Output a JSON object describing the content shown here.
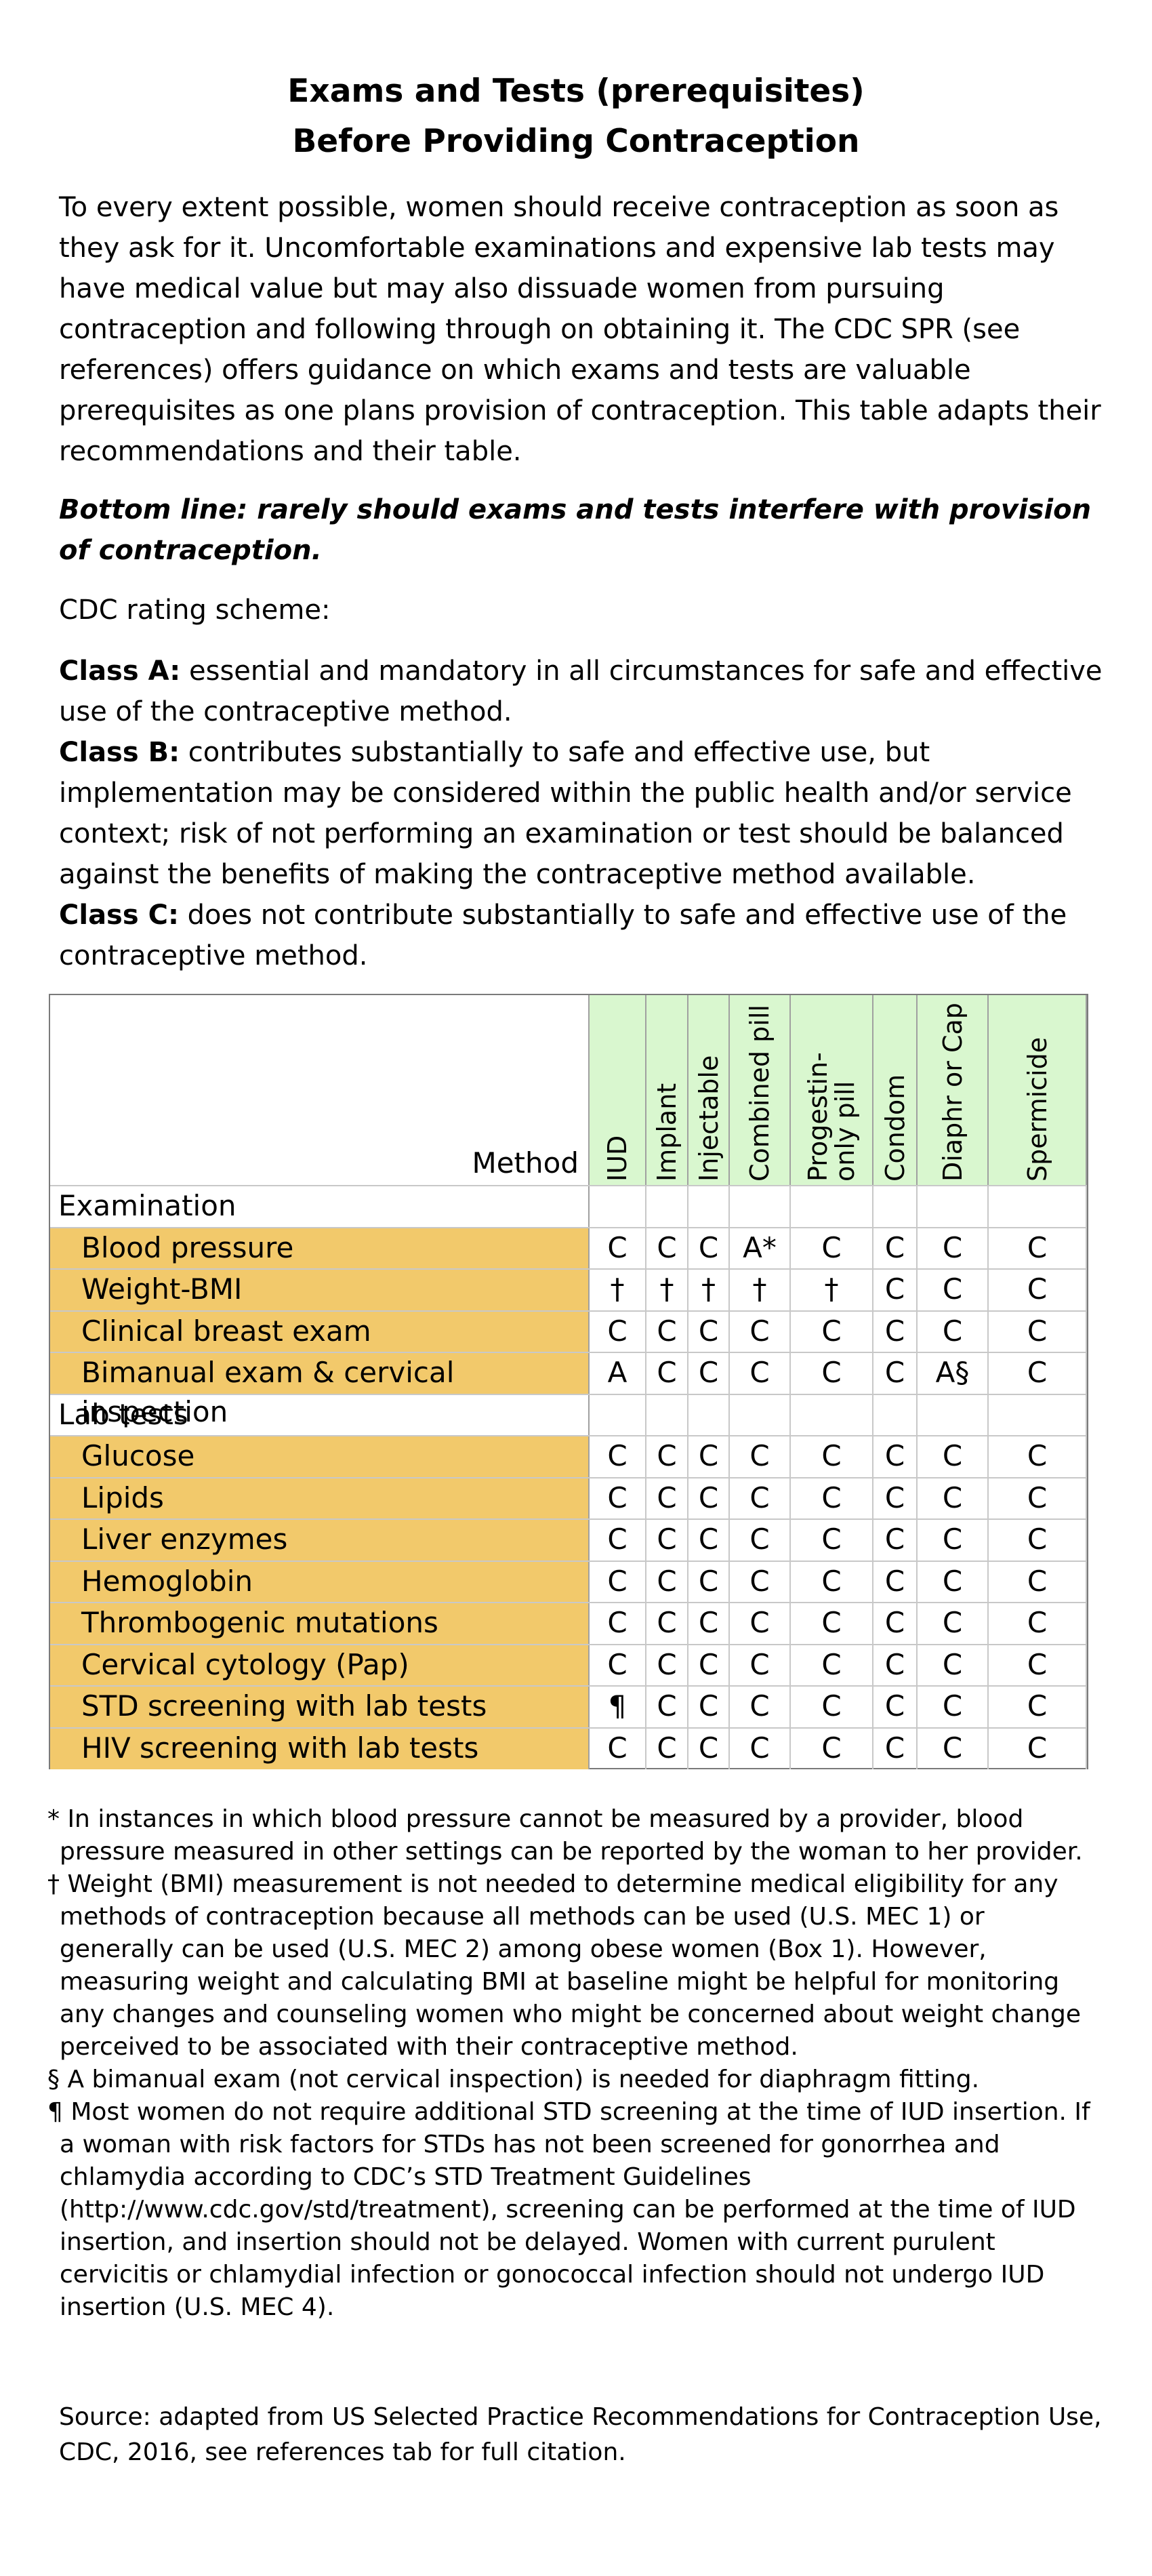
{
  "title": {
    "line1": "Exams and Tests (prerequisites)",
    "line2": "Before Providing Contraception"
  },
  "intro": "To every extent possible, women should receive contraception as soon as they ask for it.  Uncomfortable examinations and expensive lab tests may have medical value but may also dissuade women from pursuing contraception and following through on obtaining it.  The CDC SPR (see references) offers guidance on which exams and tests are valuable prerequisites as one plans provision of contraception.  This table adapts their recommendations and their table.",
  "bottom_line": "Bottom line:  rarely should exams and tests interfere with provision of contraception.",
  "rating_heading": "CDC rating scheme:",
  "classes": [
    {
      "label": "Class A:",
      "text": " essential and mandatory in all circumstances for safe and effective use of the contraceptive method."
    },
    {
      "label": "Class B:",
      "text": " contributes substantially to safe and effective use, but implementation may be considered within the public health and/or service context; risk of not performing an examination or test should be balanced against the benefits of making the contraceptive method available."
    },
    {
      "label": "Class C:",
      "text": " does not contribute substantially to safe and effective use of the contraceptive method."
    }
  ],
  "table": {
    "method_label": "Method",
    "columns": [
      "IUD",
      "Implant",
      "Injectable",
      "Combined pill",
      "Progestin-only pill",
      "Condom",
      "Diaphr or Cap",
      "Spermicide"
    ],
    "rows": [
      {
        "type": "section",
        "label": "Examination"
      },
      {
        "type": "item",
        "label": "Blood pressure",
        "values": [
          "C",
          "C",
          "C",
          "A*",
          "C",
          "C",
          "C",
          "C"
        ]
      },
      {
        "type": "item",
        "label": "Weight-BMI",
        "values": [
          "†",
          "†",
          "†",
          "†",
          "†",
          "C",
          "C",
          "C"
        ]
      },
      {
        "type": "item",
        "label": "Clinical breast exam",
        "values": [
          "C",
          "C",
          "C",
          "C",
          "C",
          "C",
          "C",
          "C"
        ]
      },
      {
        "type": "item",
        "label": "Bimanual exam & cervical inspection",
        "values": [
          "A",
          "C",
          "C",
          "C",
          "C",
          "C",
          "A§",
          "C"
        ]
      },
      {
        "type": "section",
        "label": "Lab tests"
      },
      {
        "type": "item",
        "label": "Glucose",
        "values": [
          "C",
          "C",
          "C",
          "C",
          "C",
          "C",
          "C",
          "C"
        ]
      },
      {
        "type": "item",
        "label": "Lipids",
        "values": [
          "C",
          "C",
          "C",
          "C",
          "C",
          "C",
          "C",
          "C"
        ]
      },
      {
        "type": "item",
        "label": "Liver enzymes",
        "values": [
          "C",
          "C",
          "C",
          "C",
          "C",
          "C",
          "C",
          "C"
        ]
      },
      {
        "type": "item",
        "label": "Hemoglobin",
        "values": [
          "C",
          "C",
          "C",
          "C",
          "C",
          "C",
          "C",
          "C"
        ]
      },
      {
        "type": "item",
        "label": "Thrombogenic mutations",
        "values": [
          "C",
          "C",
          "C",
          "C",
          "C",
          "C",
          "C",
          "C"
        ]
      },
      {
        "type": "item",
        "label": "Cervical cytology (Pap)",
        "values": [
          "C",
          "C",
          "C",
          "C",
          "C",
          "C",
          "C",
          "C"
        ]
      },
      {
        "type": "item",
        "label": "STD screening with lab tests",
        "values": [
          "¶",
          "C",
          "C",
          "C",
          "C",
          "C",
          "C",
          "C"
        ]
      },
      {
        "type": "item",
        "label": "HIV screening with lab tests",
        "values": [
          "C",
          "C",
          "C",
          "C",
          "C",
          "C",
          "C",
          "C"
        ]
      }
    ]
  },
  "footnotes": [
    "* In instances in which blood pressure cannot be measured by a provider, blood pressure measured in other settings can be reported by the woman to her provider.",
    "† Weight (BMI) measurement is not needed to determine medical eligibility for any methods of contraception because all methods can be used (U.S. MEC 1) or generally can be used (U.S. MEC 2) among obese women (Box 1). However, measuring weight and calculating BMI at baseline might be helpful for monitoring any changes and counseling women who might be concerned about weight change perceived to be associated with their contraceptive method.",
    "§ A bimanual exam (not cervical inspection) is needed for diaphragm fitting.",
    "¶ Most women do not require additional STD screening at the time of IUD insertion. If a woman with risk factors for STDs has not been screened for gonorrhea and chlamydia according to CDC’s STD Treatment Guidelines (http://www.cdc.gov/std/treatment), screening can be performed at the time of IUD insertion, and insertion should not be delayed. Women with current purulent cervicitis or chlamydial infection or gonococcal infection should not undergo IUD insertion (U.S. MEC 4)."
  ],
  "source": "Source:  adapted from US Selected Practice Recommendations for Contraception Use, CDC, 2016, see references tab for full citation.",
  "colors": {
    "header_green": "#d9f7cf",
    "row_orange": "#f2c96b"
  }
}
